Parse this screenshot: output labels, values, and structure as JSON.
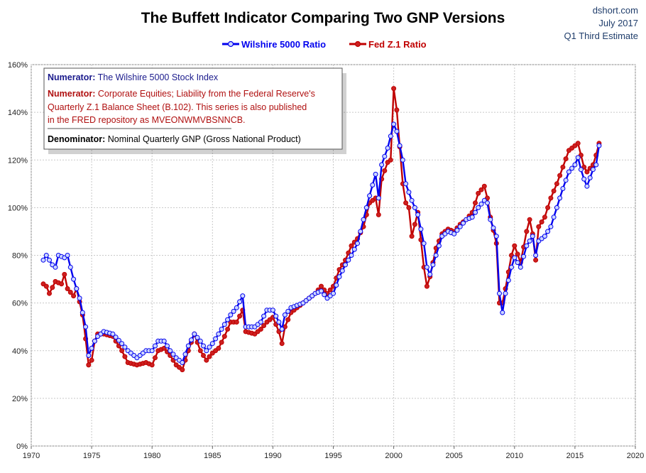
{
  "chart_data": {
    "type": "line",
    "title": "The Buffett Indicator  Comparing Two GNP Versions",
    "source": {
      "site": "dshort.com",
      "date": "July 2017",
      "note": "Q1 Third Estimate"
    },
    "legend": [
      "Wilshire 5000 Ratio",
      "Fed Z.1 Ratio"
    ],
    "xlim": [
      1970,
      2020
    ],
    "ylim": [
      0,
      160
    ],
    "x_ticks": [
      "1970",
      "1975",
      "1980",
      "1985",
      "1990",
      "1995",
      "2000",
      "2005",
      "2010",
      "2015",
      "2020"
    ],
    "y_ticks": [
      "0%",
      "20%",
      "40%",
      "60%",
      "80%",
      "100%",
      "120%",
      "140%",
      "160%"
    ],
    "colors": {
      "wilshire": "#0000ee",
      "fed": "#c00000",
      "fed_fill": "#cc2020",
      "wil_fill": "#ccd6ff"
    },
    "annotation": {
      "l1_label": "Numerator:",
      "l1_text": " The Wilshire 5000 Stock Index",
      "l2_label": "Numerator:",
      "l2_text": " Corporate Equities; Liability from the Federal Reserve's",
      "l3": "Quarterly Z.1 Balance Sheet (B.102). This series is also published",
      "l4": "in the FRED repository as MVEONWMVBSNNCB.",
      "l5_label": "Denominator:",
      "l5_text": " Nominal Quarterly GNP (Gross National Product)"
    },
    "series": [
      {
        "name": "Wilshire 5000 Ratio",
        "anchors": [
          [
            1971.0,
            78
          ],
          [
            1971.25,
            80
          ],
          [
            1971.75,
            76
          ],
          [
            1972.0,
            75
          ],
          [
            1972.25,
            80
          ],
          [
            1972.75,
            79
          ],
          [
            1973.0,
            80
          ],
          [
            1973.5,
            70
          ],
          [
            1974.0,
            62
          ],
          [
            1974.5,
            50
          ],
          [
            1974.75,
            38
          ],
          [
            1975.25,
            44
          ],
          [
            1975.5,
            46
          ],
          [
            1976.0,
            48
          ],
          [
            1976.75,
            47
          ],
          [
            1977.5,
            43
          ],
          [
            1978.0,
            40
          ],
          [
            1978.75,
            37
          ],
          [
            1979.5,
            40
          ],
          [
            1980.0,
            40
          ],
          [
            1980.5,
            44
          ],
          [
            1981.0,
            44
          ],
          [
            1981.5,
            40
          ],
          [
            1982.0,
            37
          ],
          [
            1982.5,
            35
          ],
          [
            1983.0,
            42
          ],
          [
            1983.5,
            47
          ],
          [
            1984.0,
            44
          ],
          [
            1984.5,
            40
          ],
          [
            1985.0,
            43
          ],
          [
            1985.5,
            47
          ],
          [
            1986.0,
            51
          ],
          [
            1986.5,
            55
          ],
          [
            1987.0,
            58
          ],
          [
            1987.5,
            63
          ],
          [
            1987.75,
            50
          ],
          [
            1988.5,
            50
          ],
          [
            1989.0,
            52
          ],
          [
            1989.5,
            57
          ],
          [
            1990.0,
            57
          ],
          [
            1990.5,
            52
          ],
          [
            1990.75,
            49
          ],
          [
            1991.0,
            55
          ],
          [
            1991.5,
            58
          ],
          [
            1992.5,
            60
          ],
          [
            1993.5,
            64
          ],
          [
            1994.0,
            65
          ],
          [
            1994.5,
            62
          ],
          [
            1995.0,
            64
          ],
          [
            1995.5,
            71
          ],
          [
            1996.0,
            76
          ],
          [
            1996.5,
            80
          ],
          [
            1997.0,
            85
          ],
          [
            1997.5,
            95
          ],
          [
            1998.0,
            105
          ],
          [
            1998.5,
            114
          ],
          [
            1998.75,
            104
          ],
          [
            1999.0,
            118
          ],
          [
            1999.5,
            125
          ],
          [
            1999.75,
            130
          ],
          [
            2000.0,
            135
          ],
          [
            2000.25,
            132
          ],
          [
            2000.75,
            120
          ],
          [
            2001.0,
            110
          ],
          [
            2001.5,
            103
          ],
          [
            2002.0,
            97
          ],
          [
            2002.5,
            85
          ],
          [
            2002.75,
            75
          ],
          [
            2003.0,
            72
          ],
          [
            2003.5,
            80
          ],
          [
            2004.0,
            88
          ],
          [
            2004.5,
            90
          ],
          [
            2005.0,
            89
          ],
          [
            2005.5,
            92
          ],
          [
            2006.0,
            95
          ],
          [
            2006.5,
            96
          ],
          [
            2007.0,
            100
          ],
          [
            2007.5,
            103
          ],
          [
            2007.75,
            102
          ],
          [
            2008.0,
            95
          ],
          [
            2008.5,
            88
          ],
          [
            2008.75,
            64
          ],
          [
            2009.0,
            56
          ],
          [
            2009.25,
            64
          ],
          [
            2009.75,
            75
          ],
          [
            2010.0,
            79
          ],
          [
            2010.5,
            75
          ],
          [
            2011.0,
            84
          ],
          [
            2011.5,
            88
          ],
          [
            2011.75,
            80
          ],
          [
            2012.0,
            86
          ],
          [
            2012.5,
            88
          ],
          [
            2013.0,
            92
          ],
          [
            2013.5,
            100
          ],
          [
            2014.0,
            108
          ],
          [
            2014.5,
            115
          ],
          [
            2015.0,
            118
          ],
          [
            2015.25,
            121
          ],
          [
            2015.5,
            116
          ],
          [
            2015.75,
            112
          ],
          [
            2016.0,
            109
          ],
          [
            2016.5,
            116
          ],
          [
            2016.75,
            118
          ],
          [
            2017.0,
            126
          ]
        ]
      },
      {
        "name": "Fed Z.1 Ratio",
        "anchors": [
          [
            1971.0,
            68
          ],
          [
            1971.25,
            67
          ],
          [
            1971.5,
            64
          ],
          [
            1972.0,
            69
          ],
          [
            1972.5,
            68
          ],
          [
            1972.75,
            72
          ],
          [
            1973.0,
            66
          ],
          [
            1973.5,
            63
          ],
          [
            1973.75,
            66
          ],
          [
            1974.25,
            55
          ],
          [
            1974.5,
            45
          ],
          [
            1974.75,
            34
          ],
          [
            1975.0,
            36
          ],
          [
            1975.25,
            44
          ],
          [
            1975.5,
            47
          ],
          [
            1976.0,
            47
          ],
          [
            1976.75,
            46
          ],
          [
            1977.5,
            40
          ],
          [
            1978.0,
            35
          ],
          [
            1978.75,
            34
          ],
          [
            1979.5,
            35
          ],
          [
            1980.0,
            34
          ],
          [
            1980.5,
            40
          ],
          [
            1981.0,
            41
          ],
          [
            1981.5,
            38
          ],
          [
            1982.0,
            34
          ],
          [
            1982.5,
            32
          ],
          [
            1983.0,
            40
          ],
          [
            1983.5,
            47
          ],
          [
            1984.0,
            40
          ],
          [
            1984.5,
            36
          ],
          [
            1985.0,
            39
          ],
          [
            1985.5,
            41
          ],
          [
            1986.0,
            46
          ],
          [
            1986.5,
            52
          ],
          [
            1987.0,
            52
          ],
          [
            1987.5,
            57
          ],
          [
            1987.75,
            48
          ],
          [
            1988.5,
            47
          ],
          [
            1989.0,
            49
          ],
          [
            1989.5,
            52
          ],
          [
            1990.0,
            54
          ],
          [
            1990.5,
            48
          ],
          [
            1990.75,
            43
          ],
          [
            1991.0,
            50
          ],
          [
            1991.5,
            56
          ],
          [
            1992.5,
            60
          ],
          [
            1993.5,
            64
          ],
          [
            1994.0,
            67
          ],
          [
            1994.5,
            64
          ],
          [
            1995.0,
            67
          ],
          [
            1995.5,
            74
          ],
          [
            1996.0,
            78
          ],
          [
            1996.5,
            84
          ],
          [
            1997.0,
            87
          ],
          [
            1997.5,
            92
          ],
          [
            1998.0,
            102
          ],
          [
            1998.5,
            104
          ],
          [
            1998.75,
            97
          ],
          [
            1999.0,
            112
          ],
          [
            1999.5,
            119
          ],
          [
            1999.75,
            120
          ],
          [
            2000.0,
            150
          ],
          [
            2000.25,
            141
          ],
          [
            2000.75,
            110
          ],
          [
            2001.0,
            102
          ],
          [
            2001.25,
            100
          ],
          [
            2001.5,
            88
          ],
          [
            2002.0,
            98
          ],
          [
            2002.5,
            75
          ],
          [
            2002.75,
            67
          ],
          [
            2003.0,
            71
          ],
          [
            2003.5,
            83
          ],
          [
            2004.0,
            89
          ],
          [
            2004.5,
            91
          ],
          [
            2005.0,
            90
          ],
          [
            2005.5,
            93
          ],
          [
            2006.0,
            95
          ],
          [
            2006.5,
            98
          ],
          [
            2007.0,
            106
          ],
          [
            2007.5,
            109
          ],
          [
            2007.75,
            104
          ],
          [
            2008.0,
            96
          ],
          [
            2008.5,
            85
          ],
          [
            2008.75,
            60
          ],
          [
            2009.0,
            60
          ],
          [
            2009.25,
            66
          ],
          [
            2009.75,
            80
          ],
          [
            2010.0,
            84
          ],
          [
            2010.5,
            77
          ],
          [
            2011.0,
            90
          ],
          [
            2011.25,
            95
          ],
          [
            2011.5,
            89
          ],
          [
            2011.75,
            78
          ],
          [
            2012.0,
            92
          ],
          [
            2012.5,
            96
          ],
          [
            2013.0,
            104
          ],
          [
            2013.5,
            110
          ],
          [
            2014.0,
            117
          ],
          [
            2014.5,
            124
          ],
          [
            2015.0,
            126
          ],
          [
            2015.25,
            127
          ],
          [
            2015.5,
            122
          ],
          [
            2015.75,
            117
          ],
          [
            2016.0,
            115
          ],
          [
            2016.5,
            118
          ],
          [
            2016.75,
            122
          ],
          [
            2017.0,
            127
          ]
        ]
      }
    ]
  }
}
